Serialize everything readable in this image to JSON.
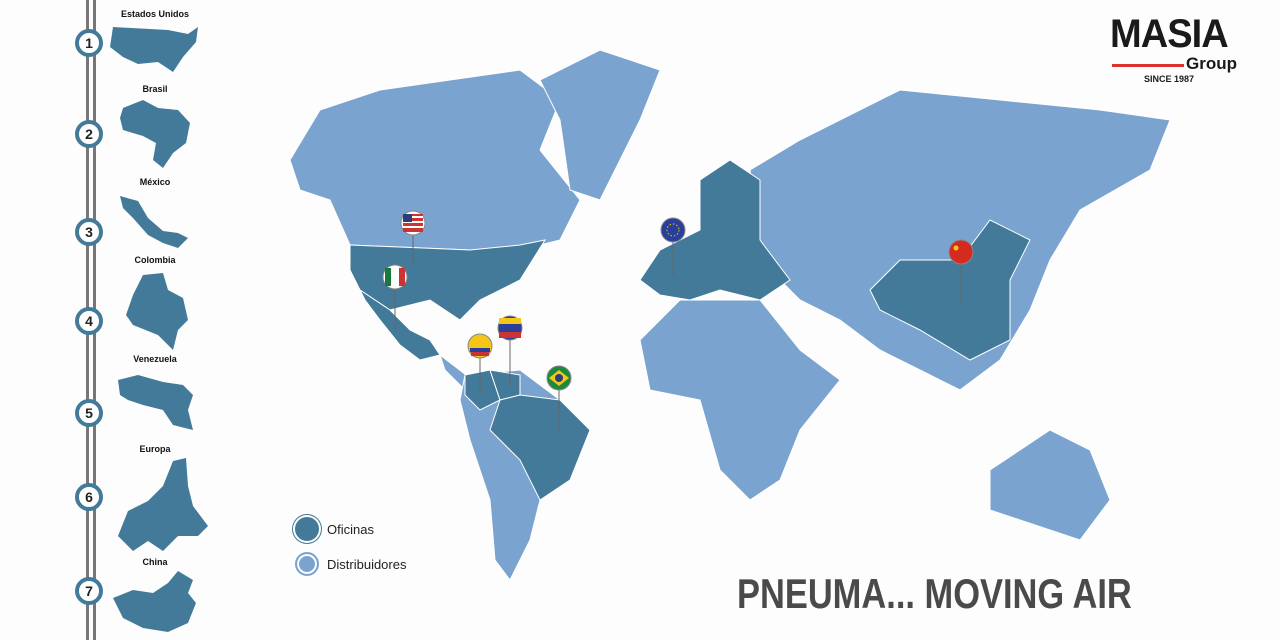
{
  "colors": {
    "offices": "#437a99",
    "distributors": "#7ba3cf",
    "accent": "#d9332b"
  },
  "steps": [
    {
      "num": "1",
      "country": "Estados Unidos"
    },
    {
      "num": "2",
      "country": "Brasil"
    },
    {
      "num": "3",
      "country": "México"
    },
    {
      "num": "4",
      "country": "Colombia"
    },
    {
      "num": "5",
      "country": "Venezuela"
    },
    {
      "num": "6",
      "country": "Europa"
    },
    {
      "num": "7",
      "country": "China"
    }
  ],
  "logo": {
    "name": "MASIA",
    "sub": "Group",
    "since": "SINCE 1987"
  },
  "legend": {
    "offices": "Oficinas",
    "distributors": "Distribuidores"
  },
  "pins": [
    "usa-flag",
    "mexico-flag",
    "colombia-flag",
    "venezuela-flag",
    "brazil-flag",
    "eu-flag",
    "china-flag"
  ],
  "tagline": "PNEUMA... MOVING AIR"
}
